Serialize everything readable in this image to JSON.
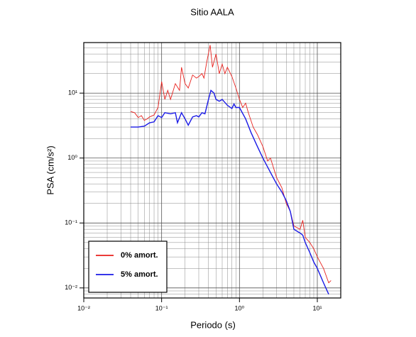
{
  "chart_data": {
    "type": "line",
    "title": "Sitio AALA",
    "xlabel": "Periodo (s)",
    "ylabel": "PSA (cm/s²)",
    "xscale": "log",
    "yscale": "log",
    "grid": true,
    "legend": "lower left",
    "xlim": [
      0.01,
      20
    ],
    "ylim": [
      0.007,
      60
    ],
    "xticks": [
      {
        "value": 0.01,
        "label": "10⁻²"
      },
      {
        "value": 0.1,
        "label": "10⁻¹"
      },
      {
        "value": 1,
        "label": "10⁰"
      },
      {
        "value": 10,
        "label": "10¹"
      }
    ],
    "yticks": [
      {
        "value": 0.01,
        "label": "10⁻²"
      },
      {
        "value": 0.1,
        "label": "10⁻¹"
      },
      {
        "value": 1,
        "label": "10⁰"
      },
      {
        "value": 10,
        "label": "10¹"
      }
    ],
    "xminor": [
      0.02,
      0.03,
      0.04,
      0.05,
      0.06,
      0.07,
      0.08,
      0.09,
      0.2,
      0.3,
      0.4,
      0.5,
      0.6,
      0.7,
      0.8,
      0.9,
      2,
      3,
      4,
      5,
      6,
      7,
      8,
      9
    ],
    "yminor": [
      0.008,
      0.009,
      0.02,
      0.03,
      0.04,
      0.05,
      0.06,
      0.07,
      0.08,
      0.09,
      0.2,
      0.3,
      0.4,
      0.5,
      0.6,
      0.7,
      0.8,
      0.9,
      2,
      3,
      4,
      5,
      6,
      7,
      8,
      9,
      20,
      30,
      40,
      50
    ],
    "series": [
      {
        "name": "0% amort.",
        "color": "#e8211d",
        "x": [
          0.04,
          0.045,
          0.05,
          0.055,
          0.06,
          0.065,
          0.07,
          0.08,
          0.09,
          0.1,
          0.11,
          0.12,
          0.13,
          0.15,
          0.17,
          0.18,
          0.2,
          0.22,
          0.25,
          0.28,
          0.3,
          0.33,
          0.35,
          0.38,
          0.42,
          0.45,
          0.5,
          0.55,
          0.6,
          0.65,
          0.7,
          0.8,
          0.9,
          1.0,
          1.1,
          1.2,
          1.3,
          1.5,
          1.7,
          2.0,
          2.3,
          2.5,
          3.0,
          3.5,
          4.0,
          4.5,
          5.0,
          6.0,
          6.5,
          7.0,
          8.0,
          9.0,
          10,
          12,
          14,
          15
        ],
        "values": [
          5.2,
          5.0,
          4.2,
          4.5,
          3.8,
          4.0,
          4.3,
          4.6,
          6,
          15,
          8,
          11,
          8,
          14,
          11,
          25,
          14,
          12,
          19,
          17,
          18,
          20,
          17,
          30,
          55,
          25,
          40,
          20,
          28,
          20,
          25,
          18,
          12,
          8,
          6,
          7,
          5,
          3,
          2.3,
          1.5,
          0.9,
          1.0,
          0.5,
          0.35,
          0.2,
          0.15,
          0.09,
          0.08,
          0.11,
          0.06,
          0.05,
          0.04,
          0.03,
          0.02,
          0.012,
          0.013
        ]
      },
      {
        "name": "5% amort.",
        "color": "#1a1ae6",
        "x": [
          0.04,
          0.05,
          0.06,
          0.07,
          0.08,
          0.09,
          0.1,
          0.11,
          0.13,
          0.15,
          0.16,
          0.18,
          0.2,
          0.22,
          0.25,
          0.28,
          0.3,
          0.33,
          0.36,
          0.4,
          0.43,
          0.47,
          0.5,
          0.55,
          0.6,
          0.7,
          0.8,
          0.85,
          0.9,
          1.0,
          1.2,
          1.4,
          1.7,
          2.0,
          2.5,
          3.0,
          3.5,
          4.0,
          4.5,
          5.0,
          6.0,
          6.5,
          7.0,
          8.0,
          9.0,
          10,
          12,
          14
        ],
        "values": [
          3.0,
          3.0,
          3.1,
          3.5,
          3.6,
          4.5,
          4.2,
          5,
          4.8,
          5,
          3.5,
          5,
          4,
          3.2,
          4.3,
          4.5,
          4.3,
          5,
          4.8,
          8,
          11,
          10,
          8,
          7.5,
          8,
          6.5,
          5.8,
          6.8,
          6,
          6,
          4,
          2.5,
          1.5,
          1.0,
          0.6,
          0.4,
          0.3,
          0.22,
          0.15,
          0.08,
          0.07,
          0.065,
          0.05,
          0.035,
          0.025,
          0.02,
          0.012,
          0.008
        ]
      }
    ]
  }
}
